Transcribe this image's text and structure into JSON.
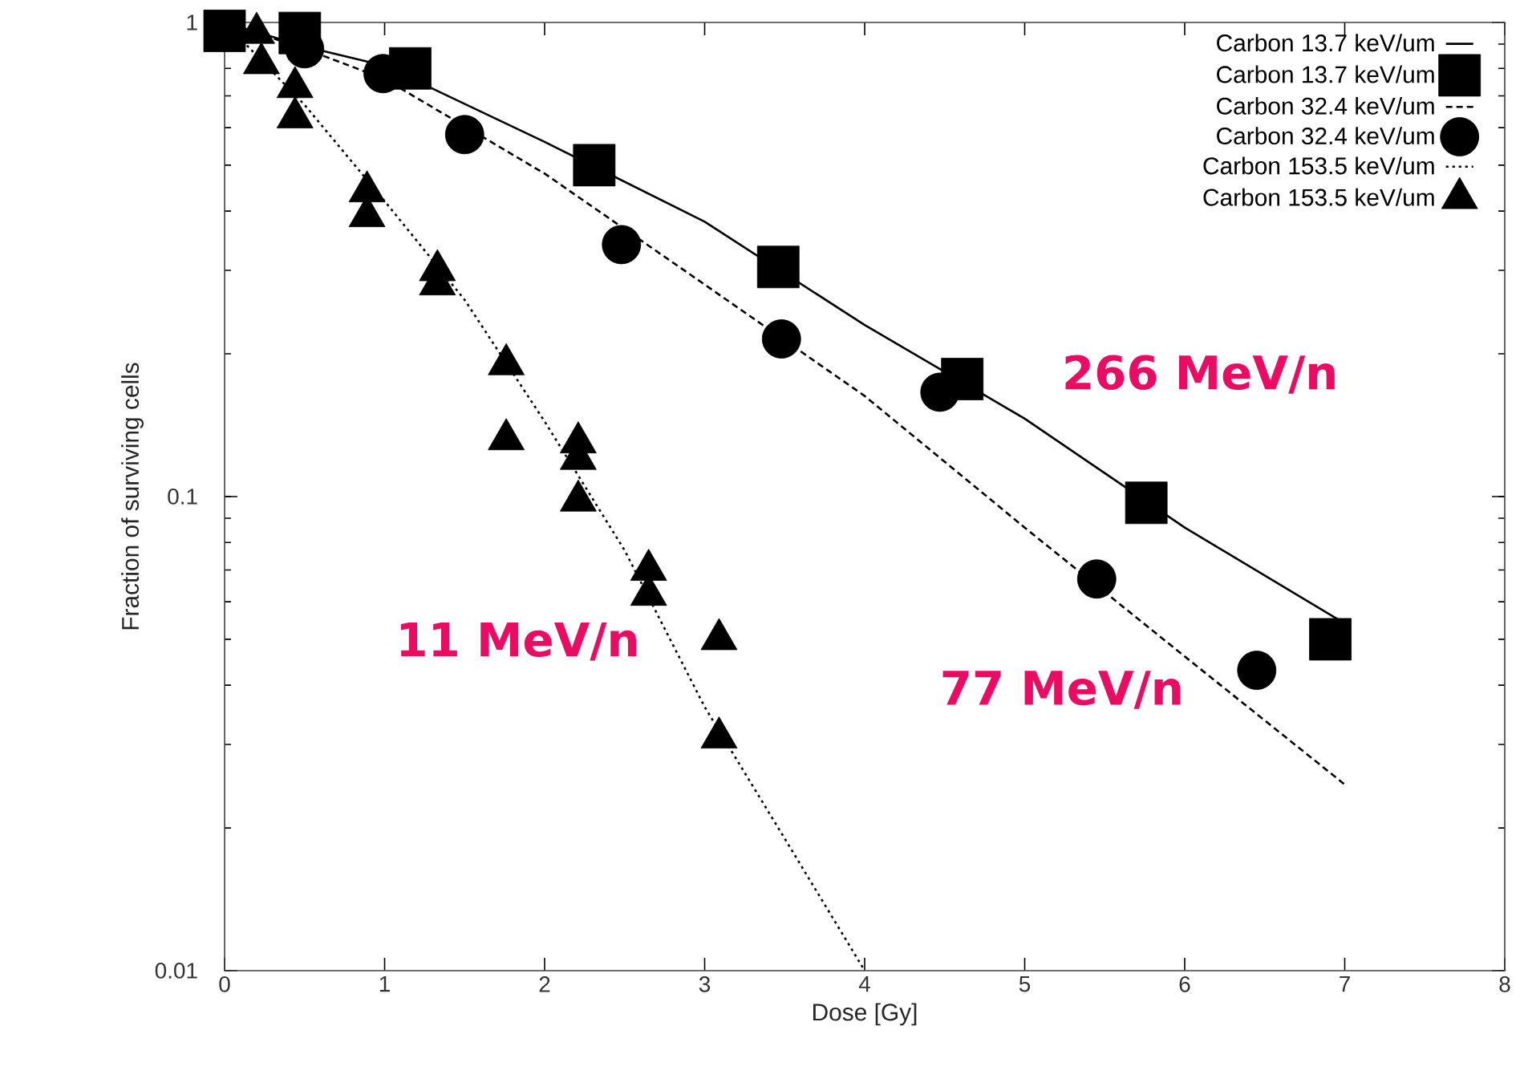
{
  "chart_data": {
    "type": "line",
    "xlabel": "Dose [Gy]",
    "ylabel": "Fraction of surviving cells",
    "xlim": [
      0,
      8
    ],
    "ylim": [
      0.01,
      1
    ],
    "xticks": [
      0,
      1,
      2,
      3,
      4,
      5,
      6,
      7,
      8
    ],
    "yticks": [
      0.01,
      0.1,
      1
    ],
    "log": "y",
    "grid": false,
    "legend": "top right",
    "series": [
      {
        "name": "Carbon 13.7 keV/um",
        "line_style": "solid",
        "marker": "none",
        "color": "#000000",
        "x": [
          0,
          0.5,
          1,
          2,
          3,
          4,
          5,
          6,
          7
        ],
        "values": [
          1.0,
          0.89,
          0.81,
          0.56,
          0.38,
          0.23,
          0.146,
          0.086,
          0.054
        ]
      },
      {
        "name": "Carbon 13.7 keV/um",
        "type": "scatter",
        "marker": "square",
        "color": "#000000",
        "x": [
          0,
          0.47,
          1.16,
          2.31,
          3.46,
          4.61,
          5.76,
          6.91
        ],
        "values": [
          0.96,
          0.95,
          0.8,
          0.5,
          0.305,
          0.177,
          0.097,
          0.05
        ]
      },
      {
        "name": "Carbon 32.4 keV/um",
        "line_style": "dashed",
        "marker": "none",
        "color": "#000000",
        "x": [
          0,
          0.5,
          1,
          2,
          3,
          4,
          5,
          6,
          7
        ],
        "values": [
          1.0,
          0.88,
          0.76,
          0.48,
          0.28,
          0.163,
          0.086,
          0.046,
          0.0247
        ]
      },
      {
        "name": "Carbon 32.4 keV/um",
        "type": "scatter",
        "marker": "circle",
        "color": "#000000",
        "x": [
          0.5,
          0.99,
          1.5,
          2.48,
          3.48,
          4.47,
          5.45,
          6.45
        ],
        "values": [
          0.88,
          0.78,
          0.58,
          0.34,
          0.215,
          0.166,
          0.067,
          0.043
        ]
      },
      {
        "name": "Carbon 153.5 keV/um",
        "line_style": "dotted",
        "marker": "none",
        "color": "#000000",
        "x": [
          0,
          0.5,
          1,
          1.5,
          2,
          2.5,
          3,
          3.5,
          4
        ],
        "values": [
          1.0,
          0.67,
          0.42,
          0.26,
          0.144,
          0.077,
          0.036,
          0.019,
          0.01
        ]
      },
      {
        "name": "Carbon 153.5 keV/um",
        "type": "scatter",
        "marker": "triangle",
        "color": "#000000",
        "x": [
          0.2,
          0.23,
          0.44,
          0.44,
          0.89,
          0.89,
          1.33,
          1.33,
          1.76,
          1.76,
          2.21,
          2.21,
          2.21,
          2.65,
          2.65,
          3.09,
          3.09
        ],
        "values": [
          0.95,
          0.82,
          0.73,
          0.63,
          0.44,
          0.39,
          0.3,
          0.28,
          0.19,
          0.132,
          0.13,
          0.12,
          0.098,
          0.07,
          0.062,
          0.05,
          0.031
        ]
      }
    ],
    "annotations": [
      "266 MeV/n",
      "11 MeV/n",
      "77 MeV/n"
    ]
  }
}
